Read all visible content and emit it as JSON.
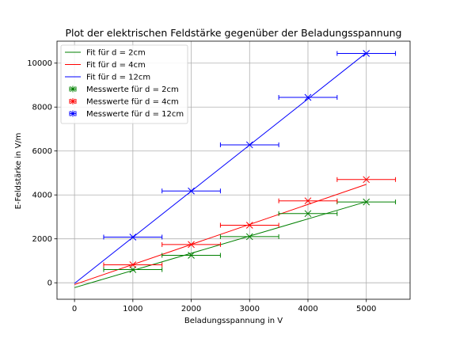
{
  "chart_data": {
    "type": "scatter",
    "title": "Plot der elektrischen Feldstärke gegenüber der Beladungsspannung",
    "xlabel": "Beladungsspannung in V",
    "ylabel": "E-Feldstärke in V/m",
    "xlim": [
      -300,
      5750
    ],
    "ylim": [
      -750,
      11000
    ],
    "xticks": [
      0,
      1000,
      2000,
      3000,
      4000,
      5000
    ],
    "yticks": [
      0,
      2000,
      4000,
      6000,
      8000,
      10000
    ],
    "xtick_labels": [
      "0",
      "1000",
      "2000",
      "3000",
      "4000",
      "5000"
    ],
    "ytick_labels": [
      "0",
      "2000",
      "4000",
      "6000",
      "8000",
      "10000"
    ],
    "grid": true,
    "legend_position": "top-left",
    "fits": [
      {
        "name": "Fit für d = 2cm",
        "color": "#008000",
        "x": [
          0,
          5000
        ],
        "y": [
          -220,
          3690
        ]
      },
      {
        "name": "Fit für d = 4cm",
        "color": "#ff0000",
        "x": [
          0,
          5000
        ],
        "y": [
          -80,
          4480
        ]
      },
      {
        "name": "Fit für d = 12cm",
        "color": "#0000ff",
        "x": [
          0,
          5000
        ],
        "y": [
          -30,
          10470
        ]
      }
    ],
    "series": [
      {
        "name": "Messwerte für d = 2cm",
        "color": "#008000",
        "x": [
          1000,
          2000,
          3000,
          4000,
          5000
        ],
        "y": [
          600,
          1250,
          2100,
          3150,
          3680
        ],
        "xerr": 500
      },
      {
        "name": "Messwerte für d = 4cm",
        "color": "#ff0000",
        "x": [
          1000,
          2000,
          3000,
          4000,
          5000
        ],
        "y": [
          820,
          1740,
          2620,
          3730,
          4700
        ],
        "xerr": 500
      },
      {
        "name": "Messwerte für d = 12cm",
        "color": "#0000ff",
        "x": [
          1000,
          2000,
          3000,
          4000,
          5000
        ],
        "y": [
          2080,
          4180,
          6280,
          8440,
          10440
        ],
        "xerr": 500
      }
    ]
  }
}
